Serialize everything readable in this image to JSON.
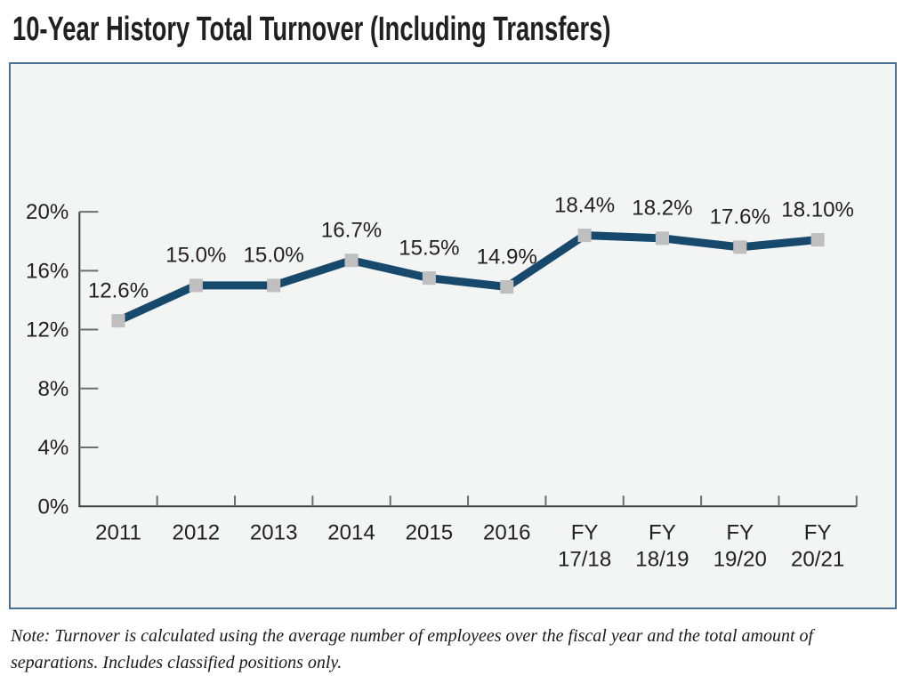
{
  "title": "10-Year History Total Turnover (Including Transfers)",
  "note": {
    "lines": [
      "Note: Turnover is calculated using the average number of employees over the fiscal year and the total amount of",
      "separations. Includes classified positions only."
    ]
  },
  "chart_data": {
    "type": "line",
    "title": "10-Year History Total Turnover (Including Transfers)",
    "categories": [
      "2011",
      "2012",
      "2013",
      "2014",
      "2015",
      "2016",
      "FY 17/18",
      "FY 18/19",
      "FY 19/20",
      "FY 20/21"
    ],
    "values": [
      12.6,
      15.0,
      15.0,
      16.7,
      15.5,
      14.9,
      18.4,
      18.2,
      17.6,
      18.1
    ],
    "point_labels": [
      "12.6%",
      "15.0%",
      "15.0%",
      "16.7%",
      "15.5%",
      "14.9%",
      "18.4%",
      "18.2%",
      "17.6%",
      "18.10%"
    ],
    "y_tick_values": [
      0,
      4,
      8,
      12,
      16,
      20
    ],
    "y_tick_labels": [
      "0%",
      "4%",
      "8%",
      "12%",
      "16%",
      "20%"
    ],
    "ylim": [
      0,
      20
    ],
    "xlabel": "",
    "ylabel": "",
    "grid": "off",
    "legend": "none",
    "colors": {
      "line": "#17496d",
      "marker": "#bfbfbf",
      "axis": "#404040",
      "tick": "#6e6e6e",
      "text": "#231f20",
      "panel_bg": "#f3f4f4",
      "panel_border": "#4b7292"
    }
  }
}
